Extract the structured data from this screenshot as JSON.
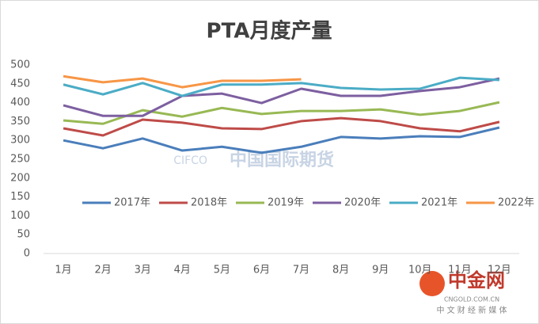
{
  "chart_data": {
    "type": "line",
    "title": "PTA月度产量",
    "categories": [
      "1月",
      "2月",
      "3月",
      "4月",
      "5月",
      "6月",
      "7月",
      "8月",
      "9月",
      "10月",
      "11月",
      "12月"
    ],
    "series": [
      {
        "name": "2017年",
        "color": "#4a7ebb",
        "values": [
          300,
          279,
          305,
          273,
          283,
          267,
          283,
          309,
          305,
          311,
          309,
          334
        ]
      },
      {
        "name": "2018年",
        "color": "#be4b48",
        "values": [
          332,
          313,
          355,
          347,
          332,
          330,
          351,
          359,
          351,
          332,
          324,
          349
        ]
      },
      {
        "name": "2019年",
        "color": "#98b954",
        "values": [
          353,
          344,
          380,
          363,
          386,
          370,
          378,
          378,
          382,
          368,
          378,
          401
        ]
      },
      {
        "name": "2020年",
        "color": "#7d5fa0",
        "values": [
          393,
          365,
          365,
          418,
          424,
          399,
          437,
          418,
          418,
          431,
          441,
          464
        ]
      },
      {
        "name": "2021年",
        "color": "#4bacc6",
        "values": [
          448,
          422,
          452,
          418,
          448,
          448,
          452,
          439,
          435,
          437,
          466,
          460
        ]
      },
      {
        "name": "2022年",
        "color": "#f79646",
        "values": [
          470,
          454,
          464,
          441,
          458,
          458,
          462,
          null,
          null,
          null,
          null,
          null
        ]
      }
    ],
    "ylim": [
      0,
      500
    ],
    "yticks": [
      0,
      50,
      100,
      150,
      200,
      250,
      300,
      350,
      400,
      450,
      500
    ],
    "grid": false,
    "watermark": {
      "brand": "中国国际期货",
      "code": "CIFCO"
    },
    "logo": {
      "name": "中金网",
      "site": "CNGOLD.COM.CN",
      "slogan": "中 文 财 经 新 媒 体"
    }
  }
}
